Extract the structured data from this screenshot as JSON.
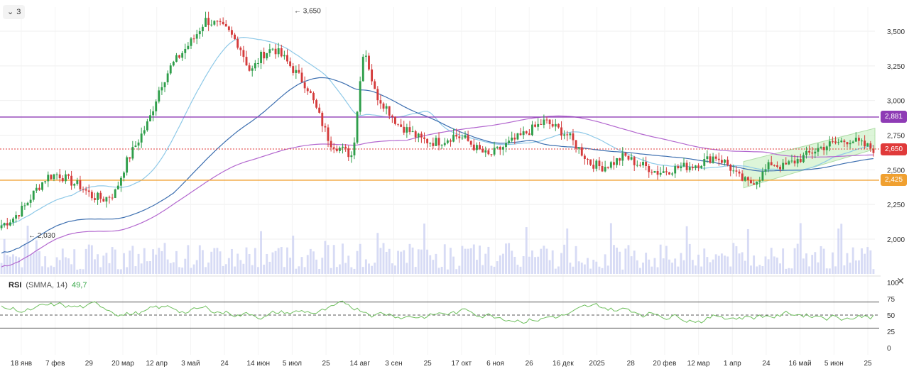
{
  "controls": {
    "collapse_label": "3"
  },
  "price_tags": [
    {
      "value": "2,881",
      "color": "#8e3bb5"
    },
    {
      "value": "2,650",
      "color": "#e03a3a"
    },
    {
      "value": "2,425",
      "color": "#f0a030"
    }
  ],
  "annotations": {
    "high": "← 3,650",
    "low": "← 2,030"
  },
  "rsi": {
    "label": "RSI",
    "params": "(SMMA, 14)",
    "value": "49,7"
  },
  "chart_data": [
    {
      "type": "candlestick",
      "y_ticks": [
        "3,500",
        "3,250",
        "3,000",
        "2,750",
        "2,500",
        "2,250",
        "2,000"
      ],
      "y_tick_values": [
        3500,
        3250,
        3000,
        2750,
        2500,
        2250,
        2000
      ],
      "ylim": [
        1750,
        3750
      ],
      "x_ticks": [
        "18 янв",
        "7 фев",
        "29",
        "20 мар",
        "12 апр",
        "3 май",
        "24",
        "14 июн",
        "5 июл",
        "25",
        "14 авг",
        "3 сен",
        "25",
        "17 окт",
        "6 ноя",
        "26",
        "16 дек",
        "2025",
        "28",
        "20 фев",
        "12 мар",
        "1 апр",
        "24",
        "16 май",
        "5 июн",
        "25"
      ],
      "close_path": [
        2100,
        2150,
        2230,
        2350,
        2450,
        2470,
        2420,
        2380,
        2310,
        2290,
        2330,
        2550,
        2700,
        2850,
        3100,
        3250,
        3350,
        3450,
        3580,
        3550,
        3500,
        3400,
        3200,
        3330,
        3380,
        3300,
        3200,
        3100,
        2900,
        2700,
        2650,
        2600,
        3400,
        3050,
        2950,
        2830,
        2780,
        2720,
        2700,
        2710,
        2750,
        2720,
        2650,
        2600,
        2650,
        2700,
        2750,
        2800,
        2850,
        2800,
        2750,
        2650,
        2550,
        2520,
        2550,
        2600,
        2550,
        2520,
        2480,
        2500,
        2520,
        2530,
        2560,
        2600,
        2550,
        2450,
        2400,
        2450,
        2550,
        2520,
        2560,
        2600,
        2650,
        2680,
        2700,
        2720,
        2680,
        2650
      ],
      "horizontal_levels": [
        {
          "value": 2881,
          "color": "#8e3bb5"
        },
        {
          "value": 2650,
          "color": "#e03a3a",
          "dotted": true
        },
        {
          "value": 2425,
          "color": "#f0a030"
        }
      ],
      "high_value": 3650,
      "low_value": 2030
    },
    {
      "type": "line",
      "name": "RSI",
      "y_ticks": [
        "100",
        "75",
        "50",
        "25",
        "0"
      ],
      "y_tick_values": [
        100,
        75,
        50,
        25,
        0
      ],
      "ylim": [
        0,
        100
      ],
      "levels": [
        70,
        50,
        30
      ],
      "last_value": 49.7
    }
  ]
}
